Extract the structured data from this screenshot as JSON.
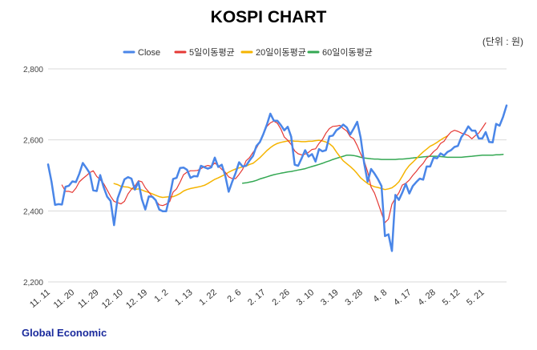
{
  "chart_data": {
    "type": "line",
    "title": "KOSPI CHART",
    "unit_label": "(단위 : 원)",
    "footer": "Global Economic",
    "ylim": [
      2200,
      2800
    ],
    "yticks": [
      "2,200",
      "2,400",
      "2,600",
      "2,800"
    ],
    "ytick_values": [
      2200,
      2400,
      2600,
      2800
    ],
    "grid": true,
    "legend_position": "top",
    "x_tick_labels": [
      "11. 11",
      "11. 20",
      "11. 29",
      "12. 10",
      "12. 19",
      "1. 2",
      "1. 13",
      "1. 22",
      "2. 6",
      "2. 17",
      "2. 26",
      "3. 10",
      "3. 19",
      "3. 28",
      "4. 8",
      "4. 17",
      "4. 28",
      "5. 12",
      "5. 21"
    ],
    "x_tick_index": [
      0,
      7,
      14,
      21,
      28,
      34,
      41,
      48,
      55,
      62,
      69,
      76,
      83,
      90,
      97,
      104,
      111,
      118,
      125
    ],
    "series": [
      {
        "name": "Close",
        "color": "#4a86e8",
        "width": 2.5,
        "start_index": 0,
        "values": [
          2531,
          2482,
          2417,
          2419,
          2418,
          2468,
          2471,
          2483,
          2481,
          2505,
          2535,
          2521,
          2506,
          2458,
          2456,
          2501,
          2467,
          2440,
          2428,
          2360,
          2435,
          2462,
          2489,
          2495,
          2491,
          2460,
          2482,
          2433,
          2404,
          2441,
          2440,
          2430,
          2404,
          2399,
          2399,
          2441,
          2490,
          2493,
          2521,
          2522,
          2516,
          2493,
          2498,
          2497,
          2527,
          2523,
          2519,
          2523,
          2550,
          2524,
          2530,
          2500,
          2454,
          2482,
          2507,
          2537,
          2525,
          2527,
          2542,
          2555,
          2583,
          2594,
          2617,
          2643,
          2674,
          2654,
          2654,
          2642,
          2627,
          2637,
          2609,
          2530,
          2527,
          2548,
          2571,
          2553,
          2560,
          2539,
          2574,
          2568,
          2571,
          2610,
          2612,
          2627,
          2634,
          2643,
          2635,
          2615,
          2632,
          2651,
          2606,
          2535,
          2482,
          2518,
          2505,
          2489,
          2470,
          2329,
          2334,
          2287,
          2445,
          2431,
          2452,
          2476,
          2449,
          2470,
          2481,
          2491,
          2488,
          2525,
          2525,
          2550,
          2548,
          2562,
          2556,
          2566,
          2571,
          2580,
          2583,
          2608,
          2621,
          2638,
          2626,
          2626,
          2604,
          2604,
          2622,
          2594,
          2593,
          2645,
          2640,
          2665,
          2697
        ]
      },
      {
        "name": "5일이동평균",
        "color": "#e53935",
        "width": 1.2,
        "start_index": 4,
        "values": [
          2473,
          2455,
          2455,
          2452,
          2464,
          2482,
          2491,
          2499,
          2508,
          2513,
          2497,
          2488,
          2477,
          2459,
          2441,
          2427,
          2423,
          2420,
          2427,
          2448,
          2461,
          2470,
          2485,
          2482,
          2465,
          2453,
          2440,
          2429,
          2417,
          2415,
          2419,
          2426,
          2453,
          2462,
          2481,
          2502,
          2509,
          2513,
          2513,
          2514,
          2519,
          2525,
          2528,
          2526,
          2535,
          2527,
          2517,
          2509,
          2496,
          2491,
          2491,
          2503,
          2517,
          2541,
          2550,
          2565,
          2577,
          2595,
          2617,
          2638,
          2648,
          2653,
          2647,
          2631,
          2608,
          2599,
          2587,
          2569,
          2561,
          2558,
          2560,
          2565,
          2573,
          2575,
          2590,
          2601,
          2619,
          2632,
          2638,
          2639,
          2641,
          2632,
          2625,
          2609,
          2603,
          2584,
          2561,
          2541,
          2510,
          2467,
          2450,
          2422,
          2394,
          2367,
          2377,
          2419,
          2436,
          2451,
          2473,
          2478,
          2487,
          2500,
          2511,
          2524,
          2534,
          2549,
          2556,
          2567,
          2575,
          2590,
          2596,
          2611,
          2622,
          2627,
          2624,
          2619,
          2616,
          2612,
          2603,
          2612,
          2619,
          2633,
          2648
        ]
      },
      {
        "name": "20일이동평균",
        "color": "#f5b400",
        "width": 1.5,
        "start_index": 19,
        "values": [
          2477,
          2474,
          2469,
          2468,
          2467,
          2463,
          2460,
          2462,
          2459,
          2455,
          2452,
          2448,
          2444,
          2440,
          2438,
          2439,
          2440,
          2440,
          2444,
          2449,
          2456,
          2460,
          2463,
          2465,
          2467,
          2469,
          2472,
          2477,
          2483,
          2489,
          2493,
          2498,
          2503,
          2509,
          2514,
          2518,
          2521,
          2524,
          2526,
          2531,
          2534,
          2542,
          2550,
          2560,
          2570,
          2578,
          2585,
          2590,
          2593,
          2595,
          2597,
          2598,
          2596,
          2596,
          2595,
          2595,
          2596,
          2596,
          2598,
          2599,
          2597,
          2594,
          2589,
          2581,
          2566,
          2553,
          2541,
          2533,
          2525,
          2516,
          2505,
          2493,
          2485,
          2477,
          2472,
          2468,
          2466,
          2463,
          2460,
          2462,
          2465,
          2472,
          2482,
          2498,
          2515,
          2528,
          2537,
          2547,
          2557,
          2566,
          2574,
          2582,
          2587,
          2593,
          2600,
          2606,
          2611
        ]
      },
      {
        "name": "60일이동평균",
        "color": "#34a853",
        "width": 1.5,
        "start_index": 56,
        "values": [
          2478,
          2479,
          2481,
          2483,
          2486,
          2490,
          2493,
          2496,
          2499,
          2502,
          2504,
          2506,
          2508,
          2510,
          2511,
          2513,
          2515,
          2517,
          2519,
          2522,
          2525,
          2528,
          2531,
          2534,
          2538,
          2541,
          2545,
          2548,
          2551,
          2554,
          2557,
          2557,
          2556,
          2554,
          2551,
          2549,
          2548,
          2547,
          2546,
          2546,
          2545,
          2545,
          2545,
          2545,
          2545,
          2546,
          2546,
          2547,
          2548,
          2549,
          2550,
          2551,
          2552,
          2553,
          2554,
          2554,
          2554,
          2553,
          2552,
          2551,
          2551,
          2551,
          2551,
          2551,
          2552,
          2553,
          2554,
          2555,
          2556,
          2557,
          2557,
          2557,
          2557,
          2558,
          2558,
          2559
        ]
      }
    ]
  }
}
